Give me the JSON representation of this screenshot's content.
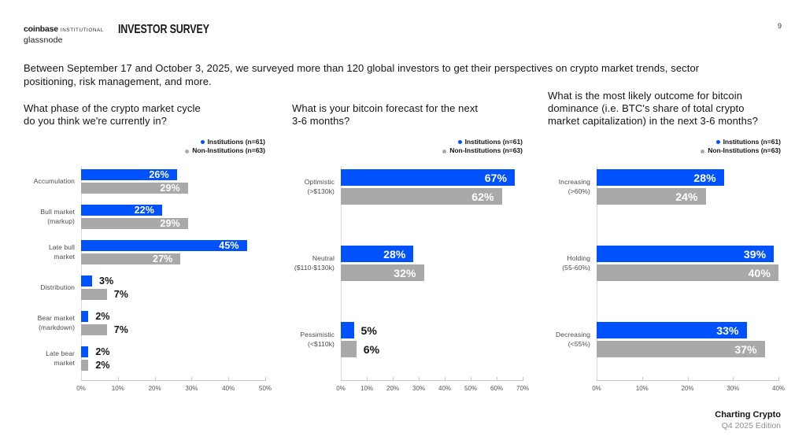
{
  "header": {
    "brand_coinbase": "coinbase",
    "brand_institutional": "INSTITUTIONAL",
    "brand_glassnode": "glassnode",
    "report_title": "INVESTOR SURVEY",
    "page_number": "9"
  },
  "intro": "Between September 17 and October 3, 2025, we surveyed more than 120 global investors to get their perspectives on crypto market trends, sector\npositioning, risk management, and more.",
  "colors": {
    "institutions": "#0052ff",
    "non_institutions": "#a9a9a9",
    "axis": "#c8c8c8",
    "value_inside": "#ffffff",
    "value_outside": "#141414"
  },
  "footer": {
    "title": "Charting Crypto",
    "subtitle": "Q4 2025 Edition"
  },
  "chart_data": [
    {
      "type": "bar",
      "orientation": "horizontal",
      "title": "What phase of the crypto market cycle\ndo you think we're currently in?",
      "categories": [
        [
          "Accumulation"
        ],
        [
          "Bull market",
          "(markup)"
        ],
        [
          "Late bull",
          "market"
        ],
        [
          "Distribution"
        ],
        [
          "Bear market",
          "(markdown)"
        ],
        [
          "Late bear",
          "market"
        ]
      ],
      "series": [
        {
          "name": "Institutions (n=61)",
          "color": "#0052ff",
          "values": [
            26,
            22,
            45,
            3,
            2,
            2
          ]
        },
        {
          "name": "Non-Institutions (n=63)",
          "color": "#a9a9a9",
          "values": [
            29,
            29,
            27,
            7,
            7,
            2
          ]
        }
      ],
      "value_suffix": "%",
      "xlim": [
        0,
        50
      ],
      "xticks": [
        "0%",
        "10%",
        "20%",
        "30%",
        "40%",
        "50%"
      ],
      "grid": false,
      "legend_position": "top-right"
    },
    {
      "type": "bar",
      "orientation": "horizontal",
      "title": "What is your bitcoin forecast for the next\n3-6 months?",
      "categories": [
        [
          "Optimistic",
          "(>$130k)"
        ],
        [
          "Neutral",
          "($110-$130k)"
        ],
        [
          "Pessimistic",
          "(<$110k)"
        ]
      ],
      "series": [
        {
          "name": "Institutions (n=61)",
          "color": "#0052ff",
          "values": [
            67,
            28,
            5
          ]
        },
        {
          "name": "Non-Institutions (n=63)",
          "color": "#a9a9a9",
          "values": [
            62,
            32,
            6
          ]
        }
      ],
      "value_suffix": "%",
      "xlim": [
        0,
        70
      ],
      "xticks": [
        "0%",
        "10%",
        "20%",
        "30%",
        "40%",
        "50%",
        "60%",
        "70%"
      ],
      "grid": false,
      "legend_position": "top-right"
    },
    {
      "type": "bar",
      "orientation": "horizontal",
      "title": "What is the most likely outcome for bitcoin\ndominance (i.e. BTC's share of total crypto\nmarket capitalization) in the next 3-6 months?",
      "categories": [
        [
          "Increasing",
          "(>60%)"
        ],
        [
          "Holding",
          "(55-60%)"
        ],
        [
          "Decreasing",
          "(<55%)"
        ]
      ],
      "series": [
        {
          "name": "Institutions (n=61)",
          "color": "#0052ff",
          "values": [
            28,
            39,
            33
          ]
        },
        {
          "name": "Non-Institutions (n=63)",
          "color": "#a9a9a9",
          "values": [
            24,
            40,
            37
          ]
        }
      ],
      "value_suffix": "%",
      "xlim": [
        0,
        40
      ],
      "xticks": [
        "0%",
        "10%",
        "20%",
        "30%",
        "40%"
      ],
      "grid": false,
      "legend_position": "top-right"
    }
  ]
}
